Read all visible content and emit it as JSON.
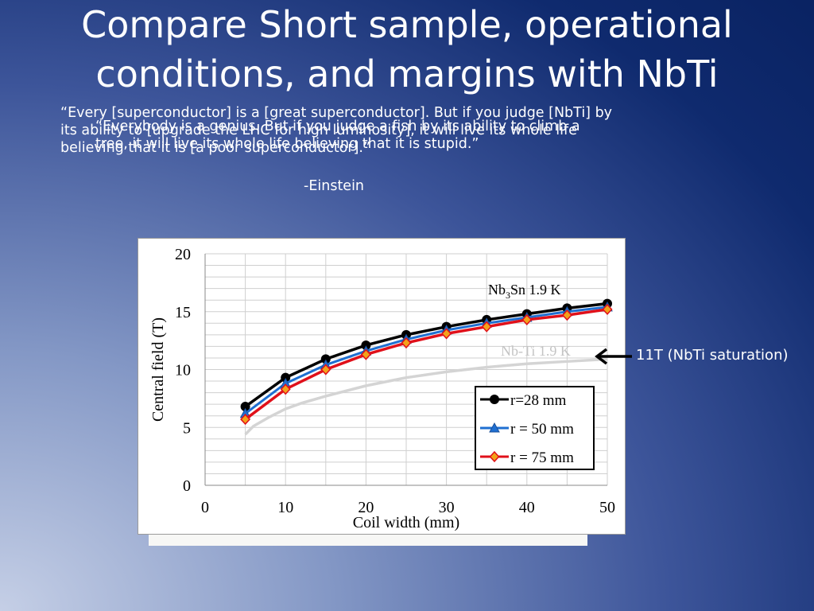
{
  "slide": {
    "title_line1": "Compare Short sample, operational",
    "title_line2": "conditions, and margins with NbTi",
    "quote1_line1": "“Every [superconductor] is a [great superconductor]. But if you judge [NbTi] by",
    "quote1_line2": "its ability to [upgrade the LHC for high luminosity], it will live its whole life",
    "quote1_line3": "believing that it is [a poor superconductor].”",
    "quote2_line1": "“Everybody is a genius. But if you judge a fish by its ability to climb a",
    "quote2_line2": "tree, it will live its whole life believing that it is stupid.”",
    "author": "-Einstein",
    "arrow_label": "11T (NbTi saturation)"
  },
  "chart_data": {
    "type": "line",
    "xlabel": "Coil width (mm)",
    "ylabel": "Central field (T)",
    "xlim": [
      0,
      50
    ],
    "ylim": [
      0,
      20
    ],
    "xticks": [
      0,
      10,
      20,
      30,
      40,
      50
    ],
    "yticks": [
      0,
      5,
      10,
      15,
      20
    ],
    "x_minor_step": 5,
    "y_minor_step": 1,
    "grid": true,
    "legend_position": "lower-right",
    "annotations": {
      "nb3sn_prefix": "Nb",
      "nb3sn_sub": "3",
      "nb3sn_suffix": "Sn 1.9 K",
      "nbti": "Nb-Ti 1.9 K"
    },
    "colors": {
      "r28": "#000000",
      "r50": "#1f6fd1",
      "r75": "#e0101a",
      "nbti": "#d4d4d4"
    },
    "x": [
      5,
      10,
      15,
      20,
      25,
      30,
      35,
      40,
      45,
      50
    ],
    "series": [
      {
        "name": "r=28 mm",
        "marker": "circle",
        "values": [
          6.8,
          9.3,
          10.9,
          12.1,
          13.0,
          13.7,
          14.3,
          14.8,
          15.3,
          15.7
        ]
      },
      {
        "name": "r = 50 mm",
        "marker": "triangle",
        "values": [
          6.2,
          8.8,
          10.4,
          11.6,
          12.6,
          13.4,
          14.0,
          14.5,
          15.0,
          15.4
        ]
      },
      {
        "name": "r = 75 mm",
        "marker": "diamond",
        "values": [
          5.7,
          8.3,
          10.0,
          11.3,
          12.3,
          13.1,
          13.7,
          14.3,
          14.7,
          15.2
        ]
      }
    ],
    "nbti_curve": {
      "x": [
        5,
        6,
        8,
        10,
        12,
        15,
        20,
        25,
        30,
        35,
        40,
        45,
        50
      ],
      "values": [
        4.4,
        5.1,
        5.9,
        6.6,
        7.1,
        7.7,
        8.6,
        9.3,
        9.8,
        10.2,
        10.5,
        10.7,
        10.9
      ]
    }
  }
}
